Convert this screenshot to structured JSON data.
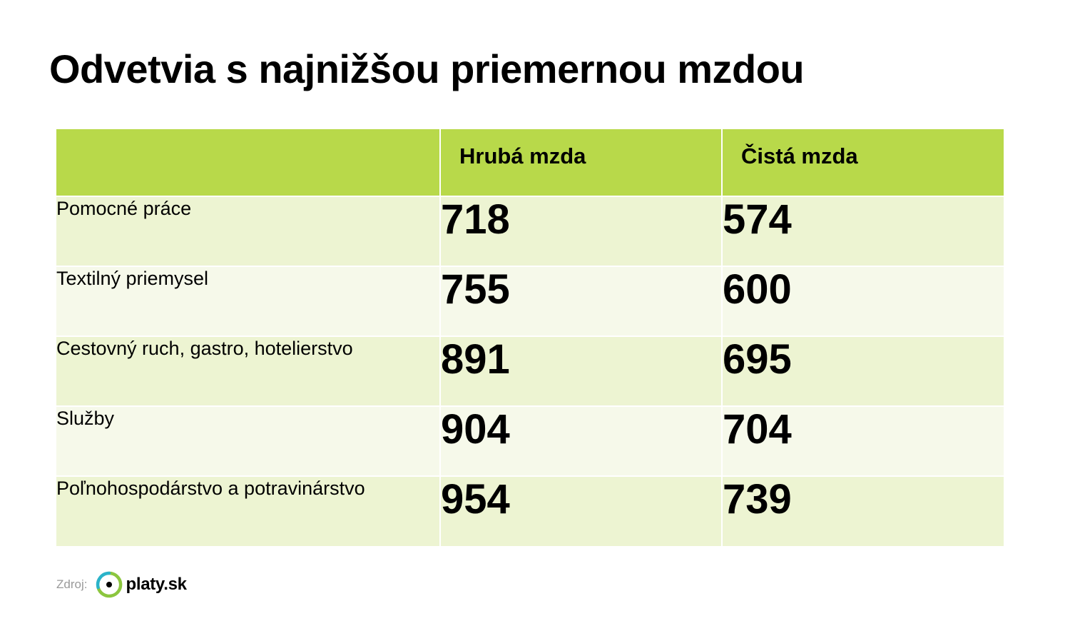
{
  "title": "Odvetvia s najnižšou priemernou mzdou",
  "colors": {
    "header_bg": "#b8d94a",
    "row_odd_bg": "#edf4d2",
    "row_even_bg": "#f6f9ea",
    "logo_ring_green": "#8cc63f",
    "logo_ring_blue": "#2bb3c9"
  },
  "chart_data": {
    "type": "table",
    "columns": [
      "",
      "Hrubá mzda",
      "Čistá mzda"
    ],
    "rows": [
      {
        "category": "Pomocné práce",
        "gross": "718",
        "net": "574"
      },
      {
        "category": "Textilný priemysel",
        "gross": "755",
        "net": "600"
      },
      {
        "category": "Cestovný ruch, gastro, hotelierstvo",
        "gross": "891",
        "net": "695"
      },
      {
        "category": "Služby",
        "gross": "904",
        "net": "704"
      },
      {
        "category": "Poľnohospodárstvo a potravinárstvo",
        "gross": "954",
        "net": "739"
      }
    ]
  },
  "source": {
    "label": "Zdroj:",
    "logo_text": "platy.sk",
    "logo_icon": "platy-sk-logo-icon"
  }
}
